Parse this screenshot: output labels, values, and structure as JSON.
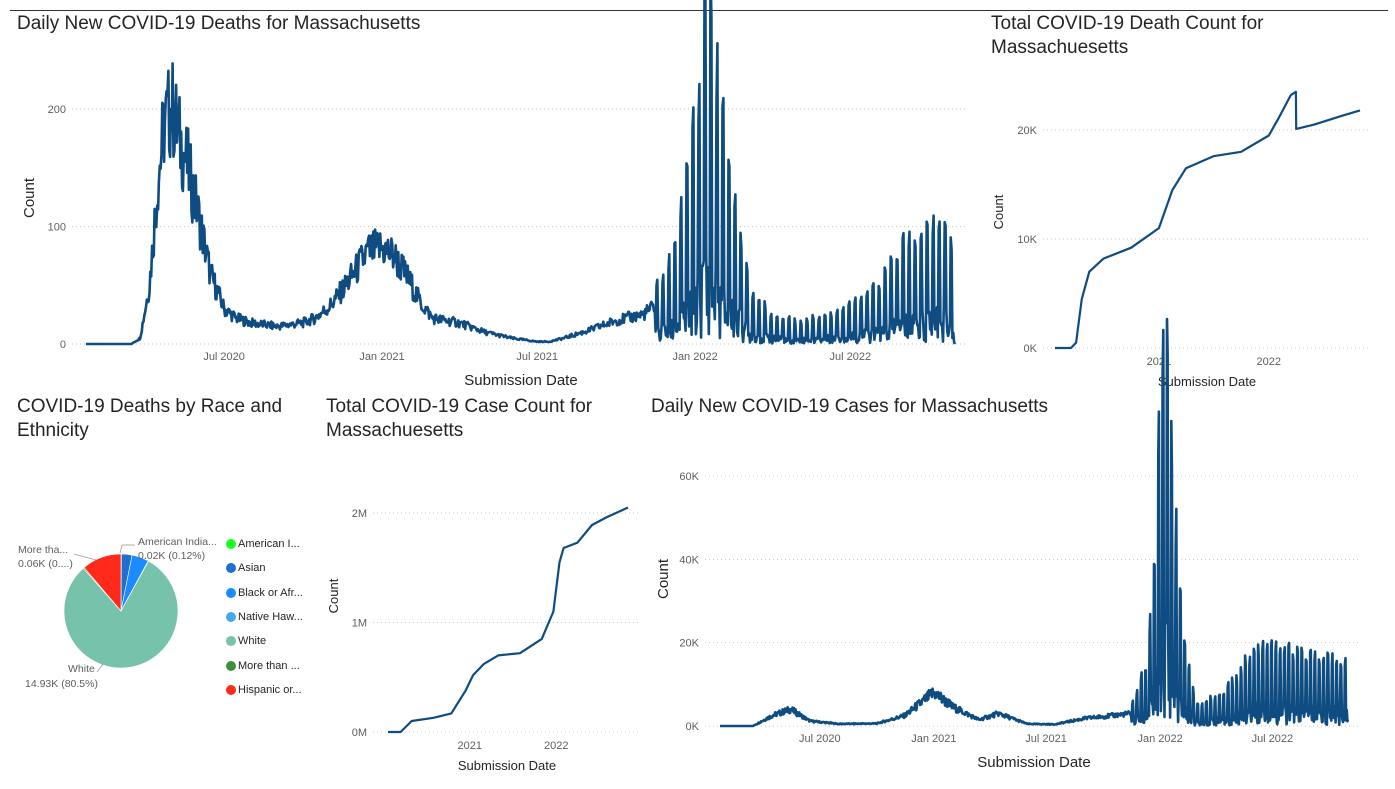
{
  "charts": {
    "daily_deaths": {
      "title": "Daily New COVID-19 Deaths for Massachusetts",
      "xlabel": "Submission Date",
      "ylabel": "Count",
      "yticks": [
        "0",
        "100",
        "200"
      ],
      "xticks": [
        "Jul 2020",
        "Jan 2021",
        "Jul 2021",
        "Jan 2022",
        "Jul 2022"
      ]
    },
    "total_deaths": {
      "title": "Total COVID-19 Death Count for Massachuesetts",
      "xlabel": "Submission Date",
      "ylabel": "Count",
      "yticks": [
        "0K",
        "10K",
        "20K"
      ],
      "xticks": [
        "2021",
        "2022"
      ]
    },
    "race": {
      "title": "COVID-19 Deaths by Race and Ethnicity",
      "labels": {
        "white_name": "White",
        "white_value": "14.93K (80.5%)",
        "american_name": "American India...",
        "american_value": "0.02K (0.12%)",
        "more_name": "More tha...",
        "more_value": "0.06K (0....)"
      },
      "legend": [
        {
          "label": "American I...",
          "color": "#1aff1a"
        },
        {
          "label": "Asian",
          "color": "#1f6fd1"
        },
        {
          "label": "Black or Afr...",
          "color": "#1a8cff"
        },
        {
          "label": "Native Haw...",
          "color": "#45a9f0"
        },
        {
          "label": "White",
          "color": "#76c2ab"
        },
        {
          "label": "More than ...",
          "color": "#3f8f3f"
        },
        {
          "label": "Hispanic or...",
          "color": "#ff2a1a"
        }
      ]
    },
    "total_cases": {
      "title": "Total COVID-19 Case Count for Massachuesetts",
      "xlabel": "Submission Date",
      "ylabel": "Count",
      "yticks": [
        "0M",
        "1M",
        "2M"
      ],
      "xticks": [
        "2021",
        "2022"
      ]
    },
    "daily_cases": {
      "title": "Daily New COVID-19 Cases for Massachusetts",
      "xlabel": "Submission Date",
      "ylabel": "Count",
      "yticks": [
        "0K",
        "20K",
        "40K",
        "60K"
      ],
      "xticks": [
        "Jul 2020",
        "Jan 2021",
        "Jul 2021",
        "Jan 2022",
        "Jul 2022"
      ]
    }
  },
  "chart_data": [
    {
      "type": "line",
      "title": "Daily New COVID-19 Deaths for Massachusetts",
      "xlabel": "Submission Date",
      "ylabel": "Count",
      "ylim": [
        0,
        210
      ],
      "x": [
        "2020-01-22",
        "2020-03-15",
        "2020-03-25",
        "2020-04-05",
        "2020-04-15",
        "2020-04-22",
        "2020-05-01",
        "2020-05-10",
        "2020-05-20",
        "2020-06-01",
        "2020-06-15",
        "2020-07-01",
        "2020-07-15",
        "2020-08-01",
        "2020-09-01",
        "2020-10-01",
        "2020-10-15",
        "2020-11-01",
        "2020-11-15",
        "2020-12-01",
        "2020-12-15",
        "2021-01-01",
        "2021-01-15",
        "2021-02-01",
        "2021-02-15",
        "2021-03-01",
        "2021-03-15",
        "2021-04-01",
        "2021-05-01",
        "2021-06-01",
        "2021-07-01",
        "2021-07-15",
        "2021-08-01",
        "2021-09-01",
        "2021-10-01",
        "2021-11-01",
        "2021-12-01",
        "2021-12-20",
        "2022-01-05",
        "2022-01-15",
        "2022-01-25",
        "2022-02-05",
        "2022-02-20",
        "2022-03-05",
        "2022-04-01",
        "2022-05-01",
        "2022-06-01",
        "2022-07-01",
        "2022-08-01",
        "2022-09-01",
        "2022-10-01",
        "2022-10-25",
        "2022-10-31"
      ],
      "y": [
        0,
        0,
        5,
        50,
        140,
        185,
        203,
        175,
        150,
        110,
        60,
        30,
        22,
        18,
        15,
        18,
        22,
        32,
        45,
        62,
        78,
        82,
        75,
        55,
        35,
        22,
        20,
        18,
        10,
        5,
        2,
        2,
        5,
        12,
        20,
        25,
        40,
        80,
        130,
        210,
        150,
        110,
        70,
        30,
        15,
        12,
        15,
        22,
        30,
        55,
        62,
        74,
        0
      ]
    },
    {
      "type": "line",
      "title": "Total COVID-19 Death Count for Massachuesetts",
      "xlabel": "Submission Date",
      "ylabel": "Count",
      "ylim": [
        0,
        24000
      ],
      "x": [
        "2020-01-22",
        "2020-03-15",
        "2020-04-01",
        "2020-04-20",
        "2020-05-15",
        "2020-07-01",
        "2020-10-01",
        "2021-01-01",
        "2021-02-15",
        "2021-04-01",
        "2021-07-01",
        "2021-10-01",
        "2022-01-01",
        "2022-02-01",
        "2022-03-15",
        "2022-04-01",
        "2022-04-02",
        "2022-06-01",
        "2022-09-01",
        "2022-10-31"
      ],
      "y": [
        0,
        0,
        500,
        4500,
        7000,
        8200,
        9200,
        11000,
        14500,
        16500,
        17600,
        18000,
        19500,
        21000,
        23200,
        23500,
        20100,
        20500,
        21300,
        21800
      ]
    },
    {
      "type": "pie",
      "title": "COVID-19 Deaths by Race and Ethnicity",
      "categories": [
        "American Indian",
        "Asian",
        "Black or African",
        "Native Hawaiian",
        "White",
        "More than one race",
        "Hispanic or Latino"
      ],
      "values": [
        0.12,
        3.0,
        4.8,
        0.1,
        80.5,
        0.32,
        11.2
      ]
    },
    {
      "type": "line",
      "title": "Total COVID-19 Case Count for Massachuesetts",
      "xlabel": "Submission Date",
      "ylabel": "Count",
      "ylim": [
        0,
        2200000
      ],
      "x": [
        "2020-01-22",
        "2020-03-15",
        "2020-05-01",
        "2020-08-01",
        "2020-10-15",
        "2020-12-15",
        "2021-01-15",
        "2021-03-01",
        "2021-05-01",
        "2021-08-01",
        "2021-11-01",
        "2021-12-20",
        "2022-01-15",
        "2022-02-01",
        "2022-04-01",
        "2022-06-01",
        "2022-08-01",
        "2022-10-31"
      ],
      "y": [
        0,
        0,
        100000,
        130000,
        170000,
        380000,
        520000,
        620000,
        700000,
        720000,
        850000,
        1100000,
        1550000,
        1680000,
        1730000,
        1890000,
        1960000,
        2050000
      ]
    },
    {
      "type": "line",
      "title": "Daily New COVID-19 Cases for Massachusetts",
      "xlabel": "Submission Date",
      "ylabel": "Count",
      "ylim": [
        0,
        66000
      ],
      "x": [
        "2020-01-22",
        "2020-03-15",
        "2020-04-15",
        "2020-05-15",
        "2020-06-15",
        "2020-08-01",
        "2020-10-01",
        "2020-11-15",
        "2020-12-15",
        "2021-01-01",
        "2021-02-01",
        "2021-03-15",
        "2021-04-15",
        "2021-06-01",
        "2021-07-15",
        "2021-09-01",
        "2021-10-15",
        "2021-11-15",
        "2021-12-10",
        "2021-12-25",
        "2022-01-03",
        "2022-01-10",
        "2022-01-20",
        "2022-02-05",
        "2022-03-01",
        "2022-04-15",
        "2022-05-15",
        "2022-06-15",
        "2022-08-01",
        "2022-10-31"
      ],
      "y": [
        0,
        0,
        2500,
        4000,
        1200,
        500,
        600,
        2500,
        6000,
        8000,
        4500,
        1500,
        3000,
        500,
        400,
        1800,
        2500,
        3000,
        9000,
        25000,
        55000,
        65000,
        40000,
        15000,
        3000,
        5000,
        9000,
        13000,
        11000,
        10000
      ]
    }
  ]
}
